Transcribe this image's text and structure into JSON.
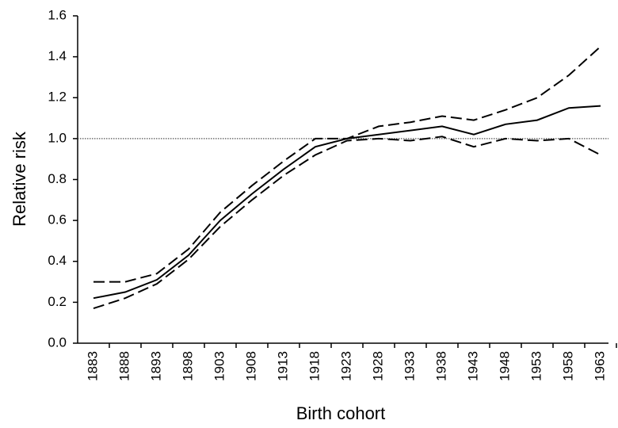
{
  "chart_data": {
    "type": "line",
    "x_label": "Birth cohort",
    "y_label": "Relative risk",
    "categories": [
      "1883",
      "1888",
      "1893",
      "1898",
      "1903",
      "1908",
      "1913",
      "1918",
      "1923",
      "1928",
      "1933",
      "1938",
      "1943",
      "1948",
      "1953",
      "1958",
      "1963"
    ],
    "series": [
      {
        "color": "#000000",
        "dash": "solid",
        "values": [
          0.22,
          0.25,
          0.31,
          0.43,
          0.6,
          0.73,
          0.85,
          0.96,
          1.0,
          1.02,
          1.04,
          1.06,
          1.02,
          1.07,
          1.09,
          1.15,
          1.16
        ]
      },
      {
        "color": "#000000",
        "dash": "dashed",
        "values": [
          0.3,
          0.3,
          0.34,
          0.46,
          0.64,
          0.77,
          0.89,
          1.0,
          1.0,
          1.06,
          1.08,
          1.11,
          1.09,
          1.14,
          1.2,
          1.31,
          1.45
        ]
      },
      {
        "color": "#000000",
        "dash": "dashed",
        "values": [
          0.17,
          0.22,
          0.29,
          0.41,
          0.57,
          0.7,
          0.82,
          0.92,
          0.99,
          1.0,
          0.99,
          1.01,
          0.96,
          1.0,
          0.99,
          1.0,
          0.92
        ]
      }
    ],
    "reference_line": 1,
    "ylim": [
      0,
      1.6
    ],
    "yticks": [
      {
        "value": 0,
        "label": "0.0"
      },
      0.2,
      0.4,
      0.6,
      0.8,
      {
        "value": 1,
        "label": "1.0"
      },
      1.2,
      1.4,
      1.6
    ],
    "grid": false
  }
}
